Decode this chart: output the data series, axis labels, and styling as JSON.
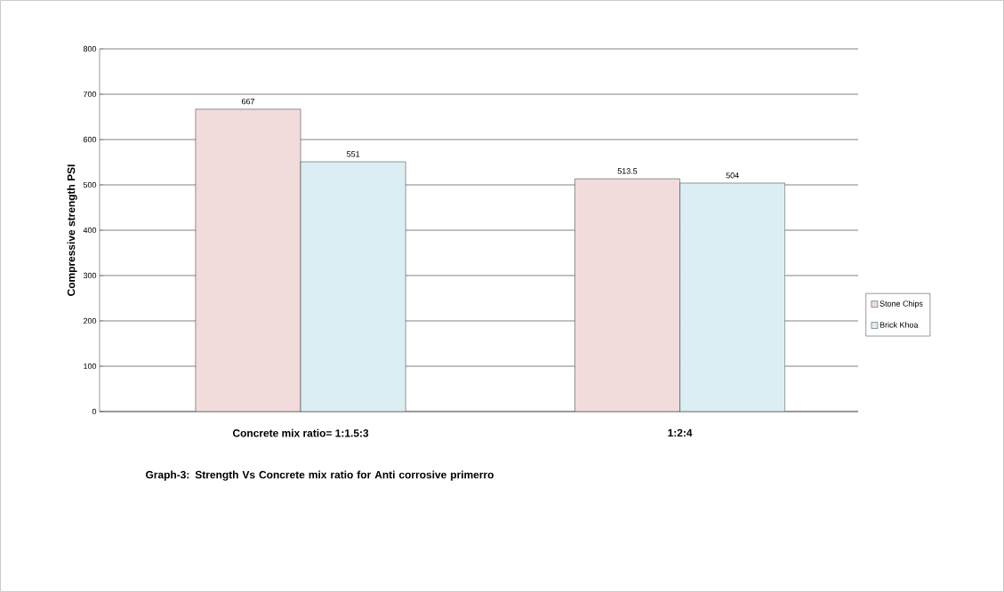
{
  "chart_data": {
    "type": "bar",
    "ylabel": "Compressive strength PSI",
    "categories": [
      "Concrete mix ratio= 1:1.5:3",
      "1:2:4"
    ],
    "series": [
      {
        "name": "Stone Chips",
        "color": "#f2dcdb",
        "values": [
          667,
          513.5
        ]
      },
      {
        "name": "Brick Khoa",
        "color": "#dbeef4",
        "values": [
          551,
          504
        ]
      }
    ],
    "ylim": [
      0,
      800
    ],
    "yticks": [
      0,
      100,
      200,
      300,
      400,
      500,
      600,
      700,
      800
    ],
    "grid": "y",
    "legend": "right",
    "data_labels": true,
    "annotations": [
      "Graph-3: Strength Vs Concrete mix ratio for Anti corrosive primerro"
    ]
  }
}
